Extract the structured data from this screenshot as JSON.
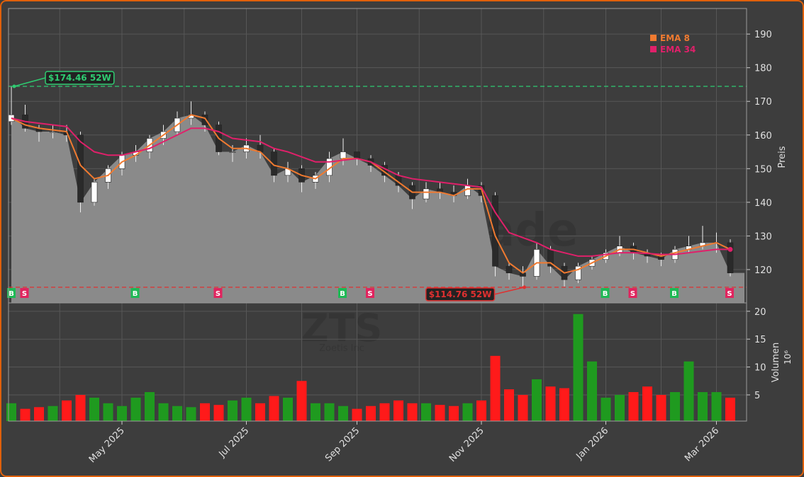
{
  "chart_data": {
    "type": "candlestick",
    "watermark": "forexsignale.trade",
    "symbol": "ZTS",
    "company": "Zoetis Inc",
    "categories": [
      null,
      null,
      null,
      null,
      null,
      null,
      null,
      null,
      "May 2025",
      null,
      null,
      null,
      null,
      null,
      null,
      null,
      null,
      "Jul 2025",
      null,
      null,
      null,
      null,
      null,
      null,
      null,
      "Sep 2025",
      null,
      null,
      null,
      null,
      null,
      null,
      null,
      null,
      "Nov 2025",
      null,
      null,
      null,
      null,
      null,
      null,
      null,
      null,
      "Jan 2026",
      null,
      null,
      null,
      null,
      null,
      null,
      null,
      "Mar 2026",
      null
    ],
    "ohlc": {
      "open": [
        164,
        166,
        162,
        161,
        161,
        160,
        140,
        146,
        150,
        154,
        155,
        159,
        161,
        165,
        166,
        163,
        155,
        155,
        157,
        155,
        148,
        150,
        146,
        148,
        153,
        155,
        153,
        151,
        148,
        145,
        141,
        144,
        143,
        142,
        145,
        142,
        121,
        119,
        118,
        126,
        121,
        117,
        121,
        123,
        125,
        127,
        125,
        124,
        123,
        126,
        127,
        128,
        128
      ],
      "high": [
        174.46,
        169,
        163,
        163,
        163,
        161,
        147,
        151,
        155,
        157,
        160,
        163,
        167,
        170,
        167,
        164,
        157,
        159,
        160,
        156,
        152,
        151,
        149,
        155,
        159,
        155,
        154,
        152,
        149,
        146,
        146,
        146,
        145,
        147,
        146,
        143,
        122,
        121,
        128,
        127,
        122,
        122,
        124,
        126,
        130,
        128,
        126,
        125,
        127,
        130,
        133,
        131,
        129
      ],
      "low": [
        163,
        161,
        158,
        159,
        158,
        137,
        139,
        144,
        148,
        152,
        153,
        157,
        160,
        163,
        161,
        154,
        152,
        153,
        153,
        146,
        146,
        143,
        144,
        146,
        151,
        151,
        149,
        146,
        143,
        138,
        140,
        141,
        140,
        141,
        140,
        118,
        117,
        114.76,
        117,
        119,
        115,
        116,
        120,
        122,
        124,
        123,
        122,
        121,
        122,
        125,
        126,
        125,
        118
      ],
      "close": [
        166,
        162,
        161,
        161,
        160,
        140,
        146,
        150,
        154,
        155,
        159,
        161,
        165,
        166,
        163,
        155,
        155,
        157,
        155,
        148,
        150,
        146,
        148,
        153,
        155,
        153,
        151,
        148,
        145,
        141,
        144,
        143,
        142,
        145,
        142,
        121,
        119,
        118,
        126,
        121,
        117,
        121,
        123,
        125,
        127,
        125,
        124,
        123,
        126,
        127,
        128,
        128,
        119
      ]
    },
    "series": [
      {
        "name": "EMA 8",
        "color": "#f07a30",
        "values": [
          165,
          163,
          162,
          161.5,
          161,
          151,
          147,
          148,
          152,
          154,
          157,
          160,
          163,
          166,
          165,
          159,
          156,
          156,
          155,
          151,
          150,
          148,
          147,
          150,
          153,
          153,
          152,
          149,
          146,
          143,
          143,
          143,
          142,
          144,
          144,
          130,
          122,
          119,
          122,
          122,
          119,
          120,
          122,
          124,
          126,
          126,
          125,
          124,
          125,
          126,
          127,
          128,
          126
        ]
      },
      {
        "name": "EMA 34",
        "color": "#e0206a",
        "values": [
          165,
          164,
          163.5,
          163,
          162.5,
          158,
          155,
          154,
          154,
          155,
          156,
          158,
          160,
          162,
          162,
          161,
          159,
          158.5,
          158,
          156,
          155,
          153.5,
          152,
          152,
          152.5,
          153,
          152,
          150,
          148,
          147,
          146.5,
          146,
          145.5,
          145,
          144.5,
          137,
          131,
          129.5,
          128,
          126,
          125,
          124,
          124,
          124.5,
          125,
          125,
          124.8,
          124.5,
          124.5,
          125,
          125.5,
          126,
          126
        ]
      }
    ],
    "ylabel": "Preis",
    "ylim": [
      110.1,
      197.6
    ],
    "yticks": [
      120,
      130,
      140,
      150,
      160,
      170,
      180,
      190
    ],
    "grid": true,
    "annotations": [
      {
        "value": 174.46,
        "x": 0,
        "label": "$174.46 52W",
        "color": "#2ecc71"
      },
      {
        "value": 114.76,
        "x": 37,
        "label": "$114.76 52W",
        "color": "#e03030"
      }
    ],
    "signals": [
      {
        "x": 0,
        "label": "B",
        "color": "#1db954"
      },
      {
        "x": 1,
        "label": "S",
        "color": "#e0245e"
      },
      {
        "x": 9,
        "label": "B",
        "color": "#1db954"
      },
      {
        "x": 15,
        "label": "S",
        "color": "#e0245e"
      },
      {
        "x": 24,
        "label": "B",
        "color": "#1db954"
      },
      {
        "x": 26,
        "label": "S",
        "color": "#e0245e"
      },
      {
        "x": 43,
        "label": "B",
        "color": "#1db954"
      },
      {
        "x": 45,
        "label": "S",
        "color": "#e0245e"
      },
      {
        "x": 48,
        "label": "B",
        "color": "#1db954"
      },
      {
        "x": 52,
        "label": "S",
        "color": "#e0245e"
      }
    ],
    "volume": {
      "label": "Volumen",
      "unit": "10⁶",
      "up_color": "#1f9a1f",
      "down_color": "#ff1a1a",
      "values": [
        3.5,
        2.5,
        2.8,
        3,
        4,
        5,
        4.5,
        3.5,
        3,
        4.5,
        5.5,
        3.5,
        3,
        2.8,
        3.5,
        3.2,
        4,
        4.5,
        3.5,
        4.8,
        4.5,
        7.5,
        3.5,
        3.5,
        3,
        2.5,
        3,
        3.5,
        4,
        3.5,
        3.5,
        3.2,
        3,
        3.5,
        4,
        12,
        6,
        5,
        7.8,
        6.5,
        6.2,
        19.5,
        11,
        4.5,
        5,
        5.5,
        6.5,
        5,
        5.5,
        11,
        5.5,
        5.5,
        4.5
      ],
      "ylim": [
        0.3,
        21.5
      ],
      "yticks": [
        5,
        10,
        15,
        20
      ]
    }
  }
}
